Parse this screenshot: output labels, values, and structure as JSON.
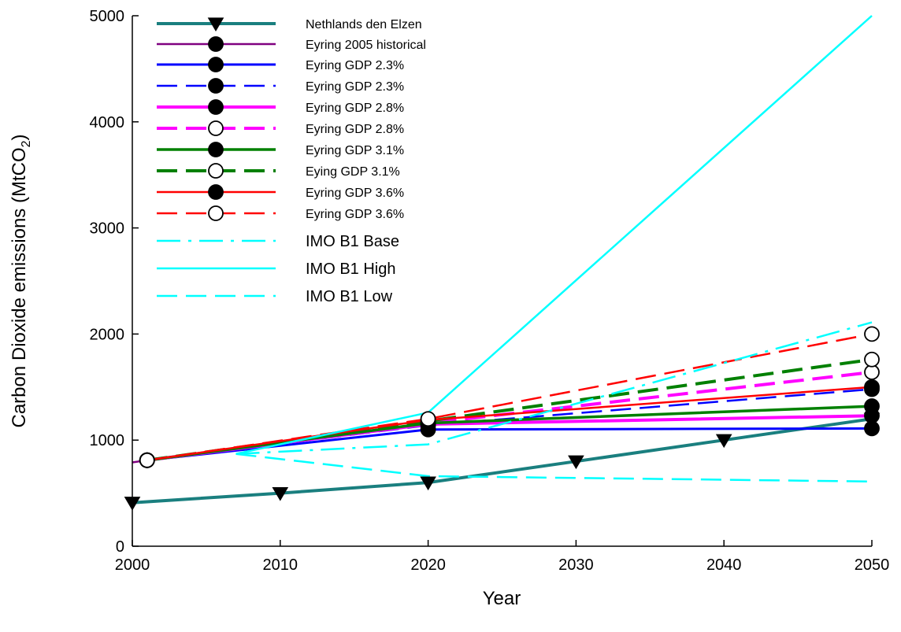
{
  "chart_data": {
    "type": "line",
    "title": "",
    "xlabel": "Year",
    "ylabel_main": "Carbon Dioxide emissions (MtCO",
    "ylabel_sub": "2",
    "ylabel_close": ")",
    "xlim": [
      2000,
      2050
    ],
    "ylim": [
      0,
      5000
    ],
    "xticks": [
      2000,
      2010,
      2020,
      2030,
      2040,
      2050
    ],
    "yticks": [
      0,
      1000,
      2000,
      3000,
      4000,
      5000
    ],
    "grid": false,
    "legend_position": "top-left",
    "series": [
      {
        "name": "Nethlands den Elzen",
        "color": "#1a7f7f",
        "dash": "solid",
        "width": 4,
        "marker": "triangle-down",
        "filled": true,
        "x": [
          2000,
          2010,
          2020,
          2030,
          2040,
          2050
        ],
        "y": [
          410,
          500,
          600,
          800,
          1000,
          1200
        ]
      },
      {
        "name": "Eyring 2005 historical",
        "color": "#800080",
        "dash": "solid",
        "width": 2.5,
        "marker": "none",
        "filled": true,
        "x": [
          2000,
          2001
        ],
        "y": [
          790,
          810
        ]
      },
      {
        "name": "Eyring GDP 2.3%",
        "color": "#0000ff",
        "dash": "solid",
        "width": 3,
        "marker": "circle",
        "filled": true,
        "x": [
          2001,
          2020,
          2050
        ],
        "y": [
          810,
          1100,
          1110
        ]
      },
      {
        "name": "Eyring GDP 2.3%",
        "color": "#0000ff",
        "dash": "dashed",
        "width": 2.5,
        "marker": "circle",
        "filled": true,
        "x": [
          2001,
          2020,
          2050
        ],
        "y": [
          810,
          1140,
          1480
        ]
      },
      {
        "name": "Eyring GDP 2.8%",
        "color": "#ff00ff",
        "dash": "solid",
        "width": 4,
        "marker": "circle",
        "filled": true,
        "x": [
          2001,
          2020,
          2050
        ],
        "y": [
          810,
          1150,
          1230
        ]
      },
      {
        "name": "Eyring GDP 2.8%",
        "color": "#ff00ff",
        "dash": "dashed",
        "width": 4,
        "marker": "circle",
        "filled": false,
        "x": [
          2001,
          2020,
          2050
        ],
        "y": [
          810,
          1160,
          1640
        ]
      },
      {
        "name": "Eyring GDP 3.1%",
        "color": "#008000",
        "dash": "solid",
        "width": 3.5,
        "marker": "circle",
        "filled": true,
        "x": [
          2001,
          2020,
          2050
        ],
        "y": [
          810,
          1160,
          1320
        ]
      },
      {
        "name": "Eying GDP 3.1%",
        "color": "#008000",
        "dash": "dashed",
        "width": 4,
        "marker": "circle",
        "filled": false,
        "x": [
          2001,
          2020,
          2050
        ],
        "y": [
          810,
          1180,
          1760
        ]
      },
      {
        "name": "Eyring GDP 3.6%",
        "color": "#ff0000",
        "dash": "solid",
        "width": 2.5,
        "marker": "circle",
        "filled": true,
        "x": [
          2001,
          2020,
          2050
        ],
        "y": [
          810,
          1190,
          1500
        ]
      },
      {
        "name": "Eyring GDP 3.6%",
        "color": "#ff0000",
        "dash": "dashed",
        "width": 2.5,
        "marker": "circle",
        "filled": false,
        "x": [
          2001,
          2020,
          2050
        ],
        "y": [
          810,
          1200,
          2000
        ]
      },
      {
        "name": "IMO B1 Base",
        "color": "#00ffff",
        "dash": "dashdot",
        "width": 2.5,
        "marker": "none",
        "filled": false,
        "x": [
          2007,
          2020,
          2050
        ],
        "y": [
          870,
          960,
          2110
        ]
      },
      {
        "name": "IMO B1 High",
        "color": "#00ffff",
        "dash": "solid",
        "width": 2.5,
        "marker": "none",
        "filled": false,
        "x": [
          2007,
          2020,
          2050
        ],
        "y": [
          870,
          1260,
          5000
        ]
      },
      {
        "name": "IMO B1 Low",
        "color": "#00ffff",
        "dash": "dashed",
        "width": 2.5,
        "marker": "none",
        "filled": false,
        "x": [
          2007,
          2020,
          2050
        ],
        "y": [
          870,
          660,
          610
        ]
      }
    ]
  }
}
